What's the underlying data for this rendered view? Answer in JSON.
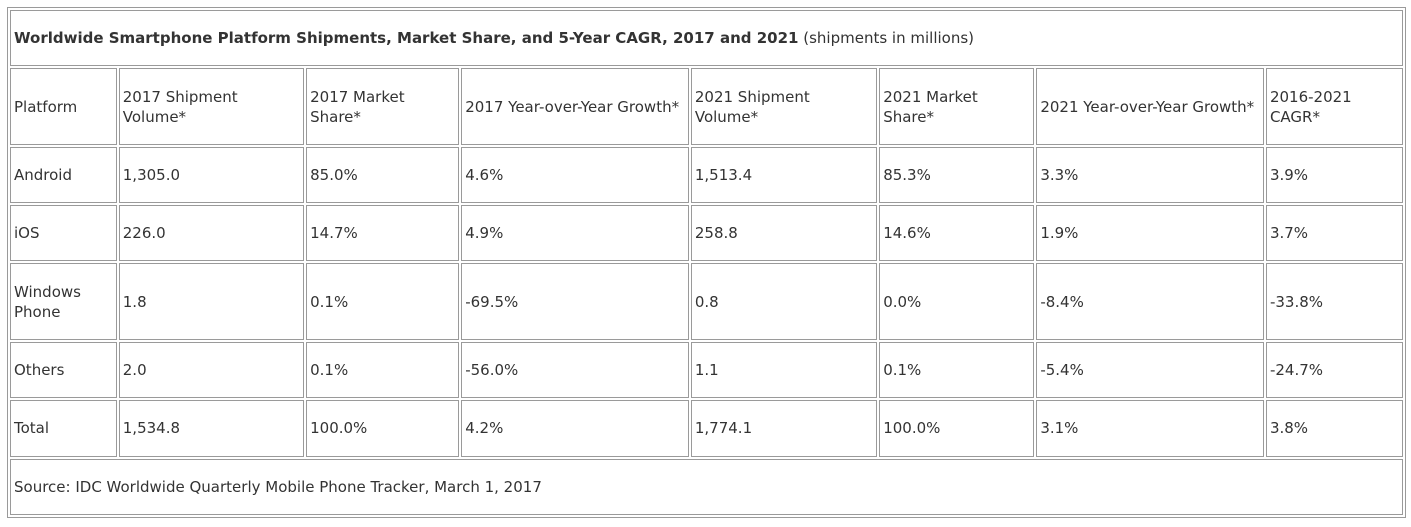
{
  "chart_data": {
    "type": "table",
    "title": "Worldwide Smartphone Platform Shipments, Market Share, and 5-Year CAGR, 2017 and 2021",
    "subtitle": "(shipments in millions)",
    "columns": [
      "Platform",
      "2017 Shipment Volume*",
      "2017 Market Share*",
      "2017 Year-over-Year Growth*",
      "2021 Shipment Volume*",
      "2021 Market Share*",
      "2021 Year-over-Year Growth*",
      "2016-2021 CAGR*"
    ],
    "rows": [
      [
        "Android",
        "1,305.0",
        "85.0%",
        "4.6%",
        "1,513.4",
        "85.3%",
        "3.3%",
        "3.9%"
      ],
      [
        "iOS",
        "226.0",
        "14.7%",
        "4.9%",
        "258.8",
        "14.6%",
        "1.9%",
        "3.7%"
      ],
      [
        "Windows Phone",
        "1.8",
        "0.1%",
        "-69.5%",
        "0.8",
        "0.0%",
        "-8.4%",
        "-33.8%"
      ],
      [
        "Others",
        "2.0",
        "0.1%",
        "-56.0%",
        "1.1",
        "0.1%",
        "-5.4%",
        "-24.7%"
      ]
    ],
    "total": [
      "Total",
      "1,534.8",
      "100.0%",
      "4.2%",
      "1,774.1",
      "100.0%",
      "3.1%",
      "3.8%"
    ],
    "source": "Source: IDC Worldwide Quarterly Mobile Phone Tracker, March 1, 2017"
  },
  "colors": {
    "border": "#9a9a9a",
    "text": "#333333",
    "background": "#ffffff"
  }
}
